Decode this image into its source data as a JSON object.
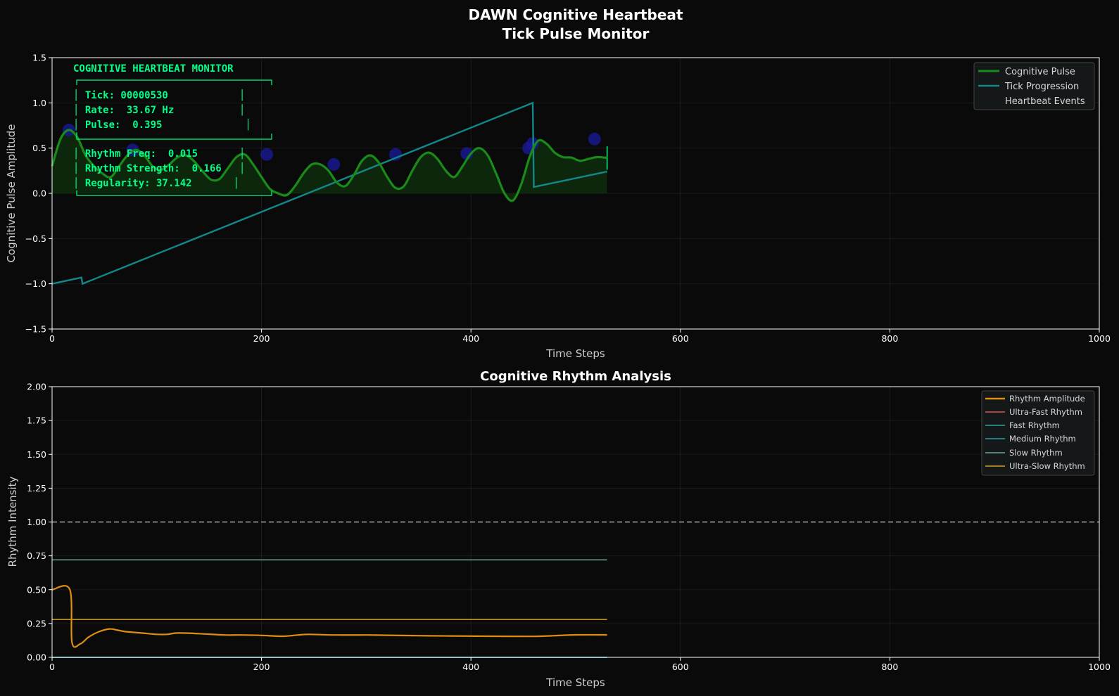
{
  "figure": {
    "suptitle_line1": "DAWN Cognitive Heartbeat",
    "suptitle_line2": "Tick Pulse Monitor"
  },
  "colors": {
    "background": "#0a0a0a",
    "pulse": "#1a8a1a",
    "pulse_fill": "#0c2a0c",
    "tick": "#14878a",
    "events": "#1a1aa0",
    "monitor_text": "#00ff88",
    "rhythm_amp": "#e08e10",
    "ultra_fast": "#d9534f",
    "fast": "#26a69a",
    "medium": "#2a9fb0",
    "slow": "#6aa89a",
    "ultra_slow": "#d4a020",
    "refline": "#aaaaaa"
  },
  "monitor": {
    "header": "COGNITIVE HEARTBEAT MONITOR",
    "line1": "│ Tick: 00000530            │",
    "line2": "│ Rate:  33.67 Hz           │",
    "line3": "│ Pulse:  0.395              │",
    "line4": "│ Rhythm Freq:  0.015       │",
    "line5": "│ Rhythm Strength:  0.166   │",
    "line6": "│ Regularity: 37.142       │"
  },
  "chart_data": [
    {
      "type": "line",
      "title": "",
      "xlabel": "Time Steps",
      "ylabel": "Cognitive Pulse Amplitude",
      "xlim": [
        0,
        1000
      ],
      "ylim": [
        -1.5,
        1.5
      ],
      "xticks": [
        "0",
        "200",
        "400",
        "600",
        "800",
        "1000"
      ],
      "yticks": [
        "1.5",
        "1.0",
        "0.5",
        "0.0",
        "−0.5",
        "−1.0",
        "−1.5"
      ],
      "grid": true,
      "legend_position": "top-right",
      "series": [
        {
          "name": "Cognitive Pulse",
          "x": [
            0,
            8,
            16,
            24,
            32,
            40,
            48,
            56,
            64,
            72,
            80,
            88,
            96,
            104,
            112,
            120,
            128,
            136,
            144,
            152,
            160,
            168,
            176,
            184,
            192,
            200,
            208,
            216,
            224,
            232,
            240,
            248,
            256,
            264,
            272,
            280,
            288,
            296,
            304,
            312,
            320,
            328,
            336,
            344,
            352,
            360,
            368,
            376,
            384,
            392,
            400,
            408,
            416,
            424,
            432,
            440,
            448,
            456,
            464,
            472,
            480,
            488,
            496,
            504,
            512,
            520,
            528,
            530
          ],
          "y": [
            0.3,
            0.6,
            0.7,
            0.62,
            0.42,
            0.3,
            0.22,
            0.18,
            0.3,
            0.42,
            0.48,
            0.42,
            0.3,
            0.26,
            0.32,
            0.4,
            0.42,
            0.35,
            0.24,
            0.15,
            0.16,
            0.28,
            0.4,
            0.43,
            0.32,
            0.18,
            0.05,
            0.0,
            -0.02,
            0.08,
            0.22,
            0.32,
            0.32,
            0.25,
            0.12,
            0.08,
            0.2,
            0.36,
            0.42,
            0.34,
            0.18,
            0.06,
            0.08,
            0.25,
            0.4,
            0.45,
            0.38,
            0.25,
            0.18,
            0.3,
            0.44,
            0.5,
            0.42,
            0.22,
            0.0,
            -0.08,
            0.1,
            0.4,
            0.58,
            0.55,
            0.45,
            0.4,
            0.395,
            0.36,
            0.38,
            0.4,
            0.395,
            0.395
          ]
        },
        {
          "name": "Tick Progression",
          "x": [
            0,
            28,
            29,
            459,
            460,
            530
          ],
          "y": [
            -1.0,
            -0.93,
            -1.0,
            1.0,
            0.07,
            0.24
          ]
        },
        {
          "name": "Heartbeat Events",
          "x": [
            16,
            77,
            205,
            269,
            328,
            396,
            455,
            459,
            518
          ],
          "y": [
            0.7,
            0.48,
            0.43,
            0.32,
            0.43,
            0.44,
            0.5,
            0.55,
            0.6
          ]
        }
      ]
    },
    {
      "type": "line",
      "title": "Cognitive Rhythm Analysis",
      "xlabel": "Time Steps",
      "ylabel": "Rhythm Intensity",
      "xlim": [
        0,
        1000
      ],
      "ylim": [
        0,
        2
      ],
      "xticks": [
        "0",
        "200",
        "400",
        "600",
        "800",
        "1000"
      ],
      "yticks": [
        "2.00",
        "1.75",
        "1.50",
        "1.25",
        "1.00",
        "0.75",
        "0.50",
        "0.25",
        "0.00"
      ],
      "grid": true,
      "legend_position": "top-right",
      "reference_line_y": 1.0,
      "series": [
        {
          "name": "Rhythm Amplitude",
          "x": [
            0,
            17,
            19,
            27,
            35,
            45,
            55,
            63,
            70,
            85,
            100,
            110,
            120,
            140,
            165,
            180,
            200,
            220,
            235,
            245,
            270,
            300,
            320,
            350,
            380,
            420,
            460,
            480,
            500,
            530
          ],
          "y": [
            0.5,
            0.5,
            0.11,
            0.1,
            0.15,
            0.19,
            0.21,
            0.2,
            0.19,
            0.18,
            0.17,
            0.17,
            0.18,
            0.175,
            0.165,
            0.165,
            0.162,
            0.156,
            0.165,
            0.17,
            0.165,
            0.165,
            0.163,
            0.16,
            0.158,
            0.156,
            0.155,
            0.16,
            0.166,
            0.166
          ]
        },
        {
          "name": "Ultra-Fast Rhythm",
          "x": [
            0,
            530
          ],
          "y": [
            0.0,
            0.0
          ]
        },
        {
          "name": "Fast Rhythm",
          "x": [
            0,
            530
          ],
          "y": [
            0.0,
            0.0
          ]
        },
        {
          "name": "Medium Rhythm",
          "x": [
            0,
            530
          ],
          "y": [
            0.0,
            0.0
          ]
        },
        {
          "name": "Slow Rhythm",
          "x": [
            0,
            530
          ],
          "y": [
            0.72,
            0.72
          ]
        },
        {
          "name": "Ultra-Slow Rhythm",
          "x": [
            0,
            530
          ],
          "y": [
            0.28,
            0.28
          ]
        }
      ]
    }
  ]
}
